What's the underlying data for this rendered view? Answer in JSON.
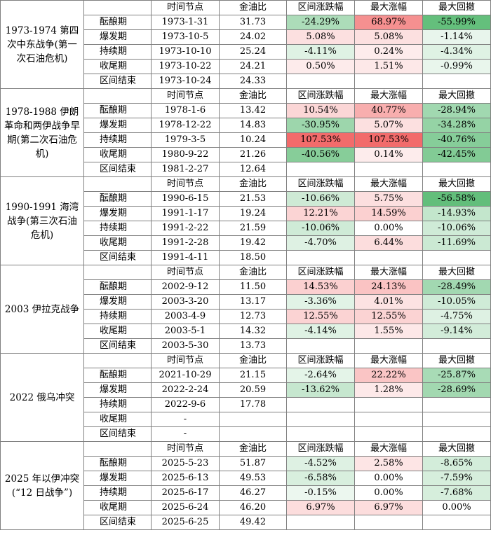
{
  "headers": {
    "phase": "",
    "date": "时间节点",
    "ratio": "金油比",
    "range_change": "区间涨跌幅",
    "max_gain": "最大涨幅",
    "max_drawdown": "最大回撤"
  },
  "events": [
    {
      "name": "1973-1974 第四次中东战争(第一次石油危机)",
      "rows": [
        {
          "phase": "酝酿期",
          "date": "1973-1-31",
          "ratio": "31.73",
          "change": "-24.29%",
          "gain": "68.97%",
          "drawdown": "-55.99%"
        },
        {
          "phase": "爆发期",
          "date": "1973-10-5",
          "ratio": "24.02",
          "change": "5.08%",
          "gain": "5.08%",
          "drawdown": "-1.14%"
        },
        {
          "phase": "持续期",
          "date": "1973-10-10",
          "ratio": "25.24",
          "change": "-4.11%",
          "gain": "0.24%",
          "drawdown": "-4.34%"
        },
        {
          "phase": "收尾期",
          "date": "1973-10-22",
          "ratio": "24.21",
          "change": "0.50%",
          "gain": "1.51%",
          "drawdown": "-0.99%"
        },
        {
          "phase": "区间结束",
          "date": "1973-10-24",
          "ratio": "24.33",
          "change": "",
          "gain": "",
          "drawdown": ""
        }
      ]
    },
    {
      "name": "1978-1988 伊朗革命和两伊战争早期(第二次石油危机)",
      "rows": [
        {
          "phase": "酝酿期",
          "date": "1978-1-6",
          "ratio": "13.42",
          "change": "10.54%",
          "gain": "40.77%",
          "drawdown": "-28.94%"
        },
        {
          "phase": "爆发期",
          "date": "1978-12-22",
          "ratio": "14.83",
          "change": "-30.95%",
          "gain": "5.07%",
          "drawdown": "-34.28%"
        },
        {
          "phase": "持续期",
          "date": "1979-3-5",
          "ratio": "10.24",
          "change": "107.53%",
          "gain": "107.53%",
          "drawdown": "-40.76%"
        },
        {
          "phase": "收尾期",
          "date": "1980-9-22",
          "ratio": "21.26",
          "change": "-40.56%",
          "gain": "0.14%",
          "drawdown": "-42.45%"
        },
        {
          "phase": "区间结束",
          "date": "1981-2-27",
          "ratio": "12.64",
          "change": "",
          "gain": "",
          "drawdown": ""
        }
      ]
    },
    {
      "name": "1990-1991 海湾战争(第三次石油危机)",
      "rows": [
        {
          "phase": "酝酿期",
          "date": "1990-6-15",
          "ratio": "21.53",
          "change": "-10.66%",
          "gain": "5.75%",
          "drawdown": "-56.58%"
        },
        {
          "phase": "爆发期",
          "date": "1991-1-17",
          "ratio": "19.24",
          "change": "12.21%",
          "gain": "14.59%",
          "drawdown": "-14.93%"
        },
        {
          "phase": "持续期",
          "date": "1991-2-22",
          "ratio": "21.59",
          "change": "-10.06%",
          "gain": "0.00%",
          "drawdown": "-10.06%"
        },
        {
          "phase": "收尾期",
          "date": "1991-2-28",
          "ratio": "19.42",
          "change": "-4.70%",
          "gain": "6.44%",
          "drawdown": "-11.69%"
        },
        {
          "phase": "区间结束",
          "date": "1991-4-11",
          "ratio": "18.50",
          "change": "",
          "gain": "",
          "drawdown": ""
        }
      ]
    },
    {
      "name": "2003 伊拉克战争",
      "rows": [
        {
          "phase": "酝酿期",
          "date": "2002-9-12",
          "ratio": "11.50",
          "change": "14.53%",
          "gain": "24.13%",
          "drawdown": "-28.49%"
        },
        {
          "phase": "爆发期",
          "date": "2003-3-20",
          "ratio": "13.17",
          "change": "-3.36%",
          "gain": "4.01%",
          "drawdown": "-10.05%"
        },
        {
          "phase": "持续期",
          "date": "2003-4-9",
          "ratio": "12.73",
          "change": "12.55%",
          "gain": "12.55%",
          "drawdown": "-4.75%"
        },
        {
          "phase": "收尾期",
          "date": "2003-5-1",
          "ratio": "14.32",
          "change": "-4.14%",
          "gain": "1.55%",
          "drawdown": "-9.14%"
        },
        {
          "phase": "区间结束",
          "date": "2003-5-30",
          "ratio": "13.73",
          "change": "",
          "gain": "",
          "drawdown": ""
        }
      ]
    },
    {
      "name": "2022 俄乌冲突",
      "rows": [
        {
          "phase": "酝酿期",
          "date": "2021-10-29",
          "ratio": "21.15",
          "change": "-2.64%",
          "gain": "22.22%",
          "drawdown": "-25.87%"
        },
        {
          "phase": "爆发期",
          "date": "2022-2-24",
          "ratio": "20.59",
          "change": "-13.62%",
          "gain": "1.28%",
          "drawdown": "-28.69%"
        },
        {
          "phase": "持续期",
          "date": "2022-9-6",
          "ratio": "17.78",
          "change": "",
          "gain": "",
          "drawdown": ""
        },
        {
          "phase": "收尾期",
          "date": "-",
          "ratio": "",
          "change": "",
          "gain": "",
          "drawdown": ""
        },
        {
          "phase": "区间结束",
          "date": "-",
          "ratio": "",
          "change": "",
          "gain": "",
          "drawdown": ""
        }
      ]
    },
    {
      "name": "2025 年以伊冲突(“12 日战争”)",
      "rows": [
        {
          "phase": "酝酿期",
          "date": "2025-5-23",
          "ratio": "51.87",
          "change": "-4.52%",
          "gain": "2.58%",
          "drawdown": "-8.65%"
        },
        {
          "phase": "爆发期",
          "date": "2025-6-13",
          "ratio": "49.53",
          "change": "-6.58%",
          "gain": "0.00%",
          "drawdown": "-7.59%"
        },
        {
          "phase": "持续期",
          "date": "2025-6-17",
          "ratio": "46.27",
          "change": "-0.15%",
          "gain": "0.00%",
          "drawdown": "-7.68%"
        },
        {
          "phase": "收尾期",
          "date": "2025-6-24",
          "ratio": "46.20",
          "change": "6.97%",
          "gain": "6.97%",
          "drawdown": "0.00%"
        },
        {
          "phase": "区间结束",
          "date": "2025-6-25",
          "ratio": "49.42",
          "change": "",
          "gain": "",
          "drawdown": ""
        }
      ]
    }
  ],
  "heatmap_colors": {
    "positive_max": "#f26b6b",
    "negative_max": "#63be7b",
    "neutral": "#ffffff"
  }
}
